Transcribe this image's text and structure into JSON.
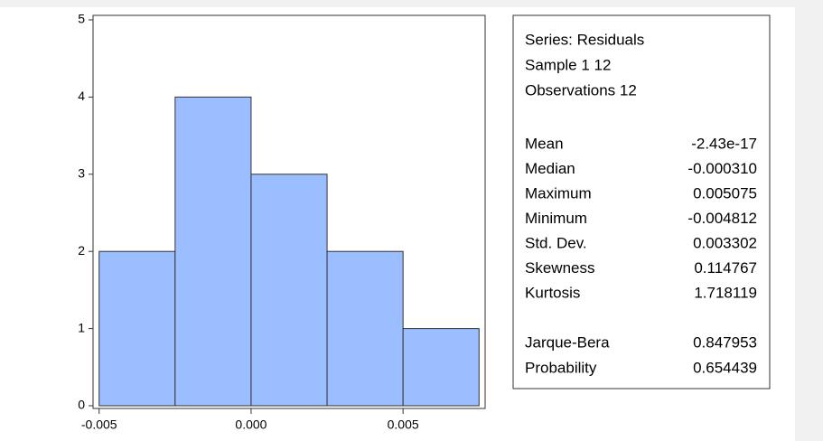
{
  "chart_data": {
    "type": "histogram",
    "bins": [
      -0.005,
      -0.0025,
      0,
      0.0025,
      0.005,
      0.0075
    ],
    "counts": [
      2,
      4,
      3,
      2,
      1
    ],
    "color": "#9abeff",
    "xlim": [
      -0.0052,
      0.0077
    ],
    "xticks": [
      -0.005,
      {
        "value": 0,
        "label": "0.000"
      },
      0.005
    ],
    "ylim": [
      0,
      5
    ],
    "yticks": [
      0,
      1,
      2,
      3,
      4,
      5
    ],
    "stats_header": [
      "Series: Residuals",
      "Sample 1 12",
      "Observations 12"
    ],
    "stats": [
      {
        "label": "Mean",
        "value": "-2.43e-17"
      },
      {
        "label": "Median",
        "value": "-0.000310"
      },
      {
        "label": "Maximum",
        "value": "0.005075"
      },
      {
        "label": "Minimum",
        "value": "-0.004812"
      },
      {
        "label": "Std. Dev.",
        "value": "0.003302"
      },
      {
        "label": "Skewness",
        "value": "0.114767"
      },
      {
        "label": "Kurtosis",
        "value": "1.718119"
      },
      {
        "label": "Jarque-Bera",
        "value": "0.847953"
      },
      {
        "label": "Probability",
        "value": "0.654439"
      }
    ]
  }
}
